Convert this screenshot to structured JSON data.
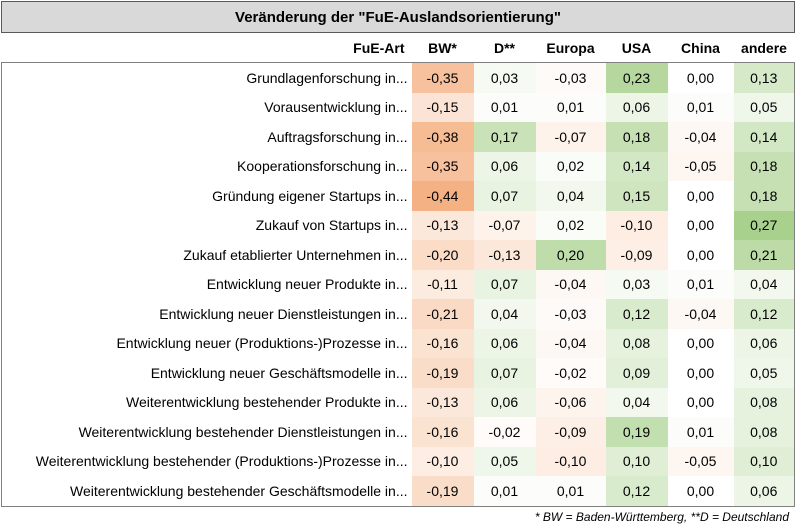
{
  "title": "Veränderung der \"FuE-Auslandsorientierung\"",
  "header": {
    "row_label": "FuE-Art",
    "columns": [
      "BW*",
      "D**",
      "Europa",
      "USA",
      "China",
      "andere"
    ]
  },
  "rows": [
    {
      "label": "Grundlagenforschung in...",
      "values": [
        "-0,35",
        "0,03",
        "-0,03",
        "0,23",
        "0,00",
        "0,13"
      ],
      "nums": [
        -0.35,
        0.03,
        -0.03,
        0.23,
        0.0,
        0.13
      ]
    },
    {
      "label": "Vorausentwicklung in...",
      "values": [
        "-0,15",
        "0,01",
        "0,01",
        "0,06",
        "0,01",
        "0,05"
      ],
      "nums": [
        -0.15,
        0.01,
        0.01,
        0.06,
        0.01,
        0.05
      ]
    },
    {
      "label": "Auftragsforschung in...",
      "values": [
        "-0,38",
        "0,17",
        "-0,07",
        "0,18",
        "-0,04",
        "0,14"
      ],
      "nums": [
        -0.38,
        0.17,
        -0.07,
        0.18,
        -0.04,
        0.14
      ]
    },
    {
      "label": "Kooperationsforschung in...",
      "values": [
        "-0,35",
        "0,06",
        "0,02",
        "0,14",
        "-0,05",
        "0,18"
      ],
      "nums": [
        -0.35,
        0.06,
        0.02,
        0.14,
        -0.05,
        0.18
      ]
    },
    {
      "label": "Gründung eigener Startups in...",
      "values": [
        "-0,44",
        "0,07",
        "0,04",
        "0,15",
        "0,00",
        "0,18"
      ],
      "nums": [
        -0.44,
        0.07,
        0.04,
        0.15,
        0.0,
        0.18
      ]
    },
    {
      "label": "Zukauf von Startups in...",
      "values": [
        "-0,13",
        "-0,07",
        "0,02",
        "-0,10",
        "0,00",
        "0,27"
      ],
      "nums": [
        -0.13,
        -0.07,
        0.02,
        -0.1,
        0.0,
        0.27
      ]
    },
    {
      "label": "Zukauf etablierter Unternehmen in...",
      "values": [
        "-0,20",
        "-0,13",
        "0,20",
        "-0,09",
        "0,00",
        "0,21"
      ],
      "nums": [
        -0.2,
        -0.13,
        0.2,
        -0.09,
        0.0,
        0.21
      ]
    },
    {
      "label": "Entwicklung neuer Produkte in...",
      "values": [
        "-0,11",
        "0,07",
        "-0,04",
        "0,03",
        "0,01",
        "0,04"
      ],
      "nums": [
        -0.11,
        0.07,
        -0.04,
        0.03,
        0.01,
        0.04
      ]
    },
    {
      "label": "Entwicklung neuer Dienstleistungen in...",
      "values": [
        "-0,21",
        "0,04",
        "-0,03",
        "0,12",
        "-0,04",
        "0,12"
      ],
      "nums": [
        -0.21,
        0.04,
        -0.03,
        0.12,
        -0.04,
        0.12
      ]
    },
    {
      "label": "Entwicklung neuer (Produktions-)Prozesse in...",
      "values": [
        "-0,16",
        "0,06",
        "-0,04",
        "0,08",
        "0,00",
        "0,06"
      ],
      "nums": [
        -0.16,
        0.06,
        -0.04,
        0.08,
        0.0,
        0.06
      ]
    },
    {
      "label": "Entwicklung neuer Geschäftsmodelle in...",
      "values": [
        "-0,19",
        "0,07",
        "-0,02",
        "0,09",
        "0,00",
        "0,05"
      ],
      "nums": [
        -0.19,
        0.07,
        -0.02,
        0.09,
        0.0,
        0.05
      ]
    },
    {
      "label": "Weiterentwicklung bestehender Produkte in...",
      "values": [
        "-0,13",
        "0,06",
        "-0,06",
        "0,04",
        "0,00",
        "0,08"
      ],
      "nums": [
        -0.13,
        0.06,
        -0.06,
        0.04,
        0.0,
        0.08
      ]
    },
    {
      "label": "Weiterentwicklung bestehender Dienstleistungen in...",
      "values": [
        "-0,16",
        "-0,02",
        "-0,09",
        "0,19",
        "0,01",
        "0,08"
      ],
      "nums": [
        -0.16,
        -0.02,
        -0.09,
        0.19,
        0.01,
        0.08
      ]
    },
    {
      "label": "Weiterentwicklung bestehender (Produktions-)Prozesse in...",
      "values": [
        "-0,10",
        "0,05",
        "-0,10",
        "0,10",
        "-0,05",
        "0,10"
      ],
      "nums": [
        -0.1,
        0.05,
        -0.1,
        0.1,
        -0.05,
        0.1
      ]
    },
    {
      "label": "Weiterentwicklung bestehender Geschäftsmodelle in...",
      "values": [
        "-0,19",
        "0,01",
        "0,01",
        "0,12",
        "0,00",
        "0,06"
      ],
      "nums": [
        -0.19,
        0.01,
        0.01,
        0.12,
        0.0,
        0.06
      ]
    }
  ],
  "colors": {
    "negative": "#f4b183",
    "positive": "#a9d18e",
    "neutral": "#ffffff",
    "title_bg": "#d9d9d9"
  },
  "scale": {
    "min": -0.44,
    "max": 0.27
  },
  "footnote": "* BW = Baden-Württemberg, **D = Deutschland"
}
